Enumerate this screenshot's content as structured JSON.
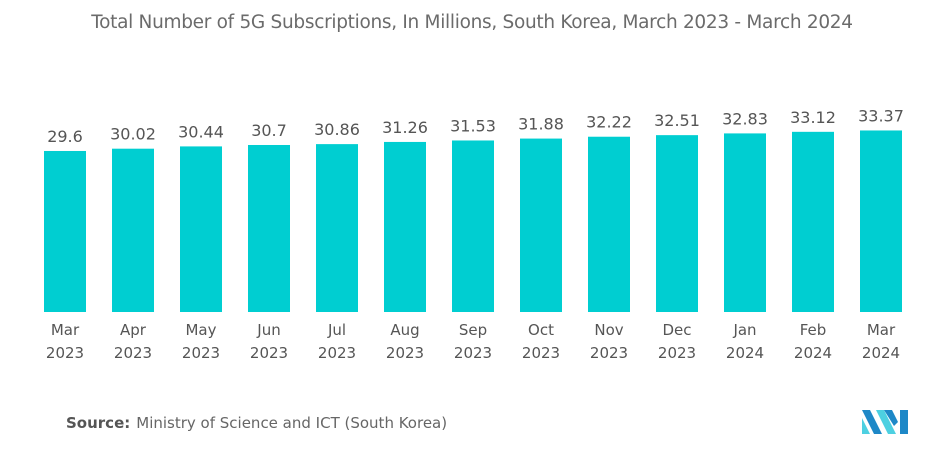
{
  "chart_data": {
    "type": "bar",
    "title": "Total Number of 5G Subscriptions, In Millions, South Korea, March 2023 - March 2024",
    "categories": [
      [
        "Mar",
        "2023"
      ],
      [
        "Apr",
        "2023"
      ],
      [
        "May",
        "2023"
      ],
      [
        "Jun",
        "2023"
      ],
      [
        "Jul",
        "2023"
      ],
      [
        "Aug",
        "2023"
      ],
      [
        "Sep",
        "2023"
      ],
      [
        "Oct",
        "2023"
      ],
      [
        "Nov",
        "2023"
      ],
      [
        "Dec",
        "2023"
      ],
      [
        "Jan",
        "2024"
      ],
      [
        "Feb",
        "2024"
      ],
      [
        "Mar",
        "2024"
      ]
    ],
    "values": [
      29.6,
      30.02,
      30.44,
      30.7,
      30.86,
      31.26,
      31.53,
      31.88,
      32.22,
      32.51,
      32.83,
      33.12,
      33.37
    ],
    "value_labels": [
      "29.6",
      "30.02",
      "30.44",
      "30.7",
      "30.86",
      "31.26",
      "31.53",
      "31.88",
      "32.22",
      "32.51",
      "32.83",
      "33.12",
      "33.37"
    ],
    "xlabel": "",
    "ylabel": "",
    "ylim": [
      0,
      35
    ],
    "grid": false,
    "legend": "none",
    "bar_color": "#00CED1"
  },
  "footer": {
    "source_label": "Source:",
    "source_text": "Ministry of Science and ICT (South Korea)"
  },
  "logo": {
    "icon": "mordor-intelligence-logo-icon",
    "colors": [
      "#1E88C7",
      "#4DD0E1"
    ]
  }
}
